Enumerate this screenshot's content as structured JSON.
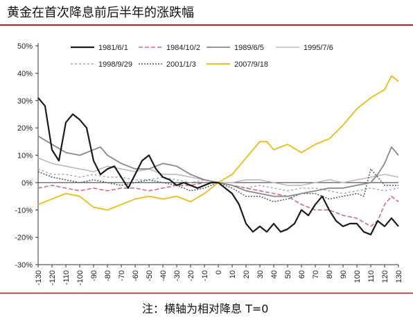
{
  "chart_data": {
    "type": "line",
    "title": "黄金在首次降息前后半年的涨跌幅",
    "note": "注：横轴为相对降息 T=0",
    "xlim": [
      -130,
      130
    ],
    "ylim": [
      -30,
      50
    ],
    "x_ticks": [
      -130,
      -120,
      -110,
      -100,
      -90,
      -80,
      -70,
      -60,
      -50,
      -40,
      -30,
      -20,
      -10,
      0,
      10,
      20,
      30,
      40,
      50,
      60,
      70,
      80,
      90,
      100,
      110,
      120,
      130
    ],
    "y_ticks": [
      -30,
      -20,
      -10,
      0,
      10,
      20,
      30,
      40,
      50
    ],
    "y_tick_labels": [
      "-30%",
      "-20%",
      "-10%",
      "0%",
      "10%",
      "20%",
      "30%",
      "40%",
      "50%"
    ],
    "legend_position": "top",
    "grid": false,
    "series": [
      {
        "name": "1981/6/1",
        "color": "#1a1a1a",
        "dash": "solid",
        "width": 2.2,
        "x": [
          -130,
          -125,
          -120,
          -115,
          -110,
          -105,
          -100,
          -95,
          -90,
          -85,
          -80,
          -75,
          -70,
          -65,
          -60,
          -55,
          -50,
          -45,
          -40,
          -35,
          -30,
          -25,
          -20,
          -15,
          -10,
          -5,
          0,
          5,
          10,
          15,
          20,
          25,
          30,
          35,
          40,
          45,
          50,
          55,
          60,
          65,
          70,
          75,
          80,
          85,
          90,
          95,
          100,
          105,
          110,
          115,
          120,
          125,
          130
        ],
        "y": [
          31,
          28,
          12,
          8,
          22,
          25,
          23,
          20,
          8,
          3,
          5,
          6,
          2,
          -2,
          3,
          8,
          10,
          5,
          2,
          1,
          -1,
          0,
          -1,
          -2,
          -1,
          0,
          0,
          -2,
          -4,
          -8,
          -15,
          -18,
          -16,
          -18,
          -15,
          -18,
          -17,
          -15,
          -10,
          -12,
          -8,
          -5,
          -10,
          -14,
          -16,
          -15,
          -15,
          -18,
          -19,
          -14,
          -16,
          -13,
          -16
        ]
      },
      {
        "name": "1984/10/2",
        "color": "#d06a8a",
        "dash": "6,3",
        "width": 1.6,
        "x": [
          -130,
          -120,
          -110,
          -100,
          -90,
          -80,
          -70,
          -60,
          -50,
          -40,
          -30,
          -20,
          -10,
          0,
          10,
          20,
          30,
          40,
          50,
          60,
          70,
          80,
          90,
          100,
          110,
          115,
          120,
          125,
          130
        ],
        "y": [
          -2,
          -1,
          -2,
          -3,
          -2,
          -3,
          -2,
          -2,
          -3,
          -2,
          -1,
          -1,
          0,
          0,
          -1,
          -2,
          -3,
          -4,
          -5,
          -8,
          -10,
          -10,
          -12,
          -13,
          -16,
          -14,
          -8,
          -5,
          -7
        ]
      },
      {
        "name": "1989/6/5",
        "color": "#888888",
        "dash": "solid",
        "width": 1.8,
        "x": [
          -130,
          -120,
          -110,
          -100,
          -90,
          -85,
          -80,
          -70,
          -60,
          -50,
          -40,
          -30,
          -20,
          -10,
          0,
          10,
          20,
          30,
          40,
          50,
          60,
          70,
          80,
          90,
          100,
          110,
          115,
          120,
          125,
          130
        ],
        "y": [
          17,
          14,
          11,
          10,
          12,
          13,
          10,
          7,
          5,
          5,
          7,
          6,
          3,
          1,
          0,
          -1,
          -3,
          -4,
          -5,
          -5,
          -4,
          -3,
          -2,
          -2,
          -1,
          0,
          3,
          7,
          13,
          10
        ]
      },
      {
        "name": "1995/7/6",
        "color": "#bbbbbb",
        "dash": "solid",
        "width": 1.6,
        "x": [
          -130,
          -120,
          -110,
          -100,
          -90,
          -80,
          -70,
          -60,
          -50,
          -40,
          -30,
          -20,
          -10,
          0,
          10,
          20,
          30,
          40,
          50,
          60,
          70,
          80,
          90,
          100,
          110,
          120,
          130
        ],
        "y": [
          9,
          7,
          6,
          5,
          4,
          6,
          5,
          4,
          5,
          3,
          3,
          2,
          1,
          0,
          0,
          1,
          1,
          0,
          -1,
          -1,
          0,
          1,
          0,
          1,
          2,
          3,
          2
        ]
      },
      {
        "name": "1998/9/29",
        "color": "#9aa8b8",
        "dash": "3,3",
        "width": 1.4,
        "x": [
          -130,
          -120,
          -110,
          -100,
          -90,
          -80,
          -70,
          -60,
          -50,
          -40,
          -30,
          -20,
          -10,
          0,
          10,
          20,
          30,
          40,
          50,
          60,
          70,
          80,
          90,
          100,
          110,
          120,
          130
        ],
        "y": [
          5,
          3,
          3,
          2,
          3,
          2,
          2,
          1,
          1,
          2,
          1,
          0,
          1,
          0,
          -1,
          -2,
          -1,
          -2,
          -3,
          -2,
          -2,
          -3,
          -4,
          -3,
          -2,
          -3,
          -2
        ]
      },
      {
        "name": "2001/1/3",
        "color": "#4a5a6a",
        "dash": "2,2",
        "width": 1.5,
        "x": [
          -130,
          -120,
          -110,
          -100,
          -90,
          -80,
          -70,
          -60,
          -50,
          -40,
          -30,
          -20,
          -10,
          0,
          10,
          20,
          30,
          40,
          50,
          60,
          70,
          80,
          90,
          100,
          105,
          110,
          120,
          130
        ],
        "y": [
          4,
          2,
          1,
          0,
          1,
          0,
          -1,
          0,
          1,
          0,
          -1,
          -3,
          -2,
          0,
          -2,
          -5,
          -5,
          -7,
          -6,
          -4,
          -4,
          -6,
          -5,
          -4,
          -5,
          5,
          -1,
          -1
        ]
      },
      {
        "name": "2007/9/18",
        "color": "#e8c22e",
        "dash": "solid",
        "width": 2.0,
        "x": [
          -130,
          -120,
          -110,
          -100,
          -90,
          -80,
          -70,
          -60,
          -50,
          -40,
          -30,
          -20,
          -10,
          0,
          10,
          20,
          30,
          35,
          40,
          50,
          60,
          70,
          80,
          90,
          100,
          110,
          120,
          125,
          130
        ],
        "y": [
          -8,
          -6,
          -4,
          -5,
          -9,
          -10,
          -8,
          -6,
          -5,
          -6,
          -5,
          -7,
          -4,
          0,
          3,
          9,
          15,
          15,
          12,
          14,
          11,
          14,
          16,
          21,
          27,
          31,
          34,
          39,
          37
        ]
      }
    ]
  }
}
